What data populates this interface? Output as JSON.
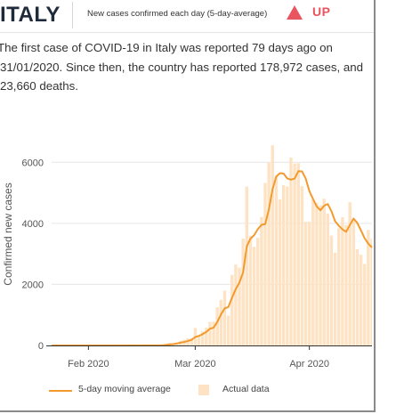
{
  "header": {
    "country": "ITALY",
    "metric_label": "New cases confirmed each day (5-day-average)",
    "trend_label": "UP",
    "trend_icon": "triangle-up-icon",
    "trend_color": "#e8555e"
  },
  "summary": "The first case of COVID-19 in Italy was reported 79 days ago on 31/01/2020. Since then, the country has reported 178,972 cases, and 23,660 deaths.",
  "legend": {
    "line_label": "5-day moving average",
    "bar_label": "Actual data"
  },
  "colors": {
    "line": "#f39a2e",
    "bars": "#fde3c3",
    "axis": "#333333",
    "grid": "#e6e6e6"
  },
  "chart_data": {
    "type": "bar",
    "title": "",
    "xlabel": "",
    "ylabel": "Confirmed new cases",
    "ylim": [
      0,
      7000
    ],
    "yticks": [
      0,
      2000,
      4000,
      6000
    ],
    "xlim": [
      "2020-01-22",
      "2020-04-18"
    ],
    "xticks": [
      {
        "date": "2020-02-01",
        "label": "Feb 2020"
      },
      {
        "date": "2020-03-01",
        "label": "Mar 2020"
      },
      {
        "date": "2020-04-01",
        "label": "Apr 2020"
      }
    ],
    "grid": "horizontal",
    "legend_position": "bottom",
    "series": [
      {
        "name": "Actual data",
        "type": "bar",
        "values": [
          [
            "2020-02-21",
            17
          ],
          [
            "2020-02-22",
            58
          ],
          [
            "2020-02-23",
            78
          ],
          [
            "2020-02-24",
            72
          ],
          [
            "2020-02-25",
            94
          ],
          [
            "2020-02-26",
            147
          ],
          [
            "2020-02-27",
            185
          ],
          [
            "2020-02-28",
            234
          ],
          [
            "2020-02-29",
            239
          ],
          [
            "2020-03-01",
            573
          ],
          [
            "2020-03-02",
            335
          ],
          [
            "2020-03-03",
            466
          ],
          [
            "2020-03-04",
            587
          ],
          [
            "2020-03-05",
            769
          ],
          [
            "2020-03-06",
            778
          ],
          [
            "2020-03-07",
            1247
          ],
          [
            "2020-03-08",
            1492
          ],
          [
            "2020-03-09",
            1797
          ],
          [
            "2020-03-10",
            977
          ],
          [
            "2020-03-11",
            2313
          ],
          [
            "2020-03-12",
            2651
          ],
          [
            "2020-03-13",
            2547
          ],
          [
            "2020-03-14",
            3497
          ],
          [
            "2020-03-15",
            5200
          ],
          [
            "2020-03-16",
            3590
          ],
          [
            "2020-03-17",
            3233
          ],
          [
            "2020-03-18",
            3526
          ],
          [
            "2020-03-19",
            4207
          ],
          [
            "2020-03-20",
            5322
          ],
          [
            "2020-03-21",
            5986
          ],
          [
            "2020-03-22",
            6557
          ],
          [
            "2020-03-23",
            5560
          ],
          [
            "2020-03-24",
            4789
          ],
          [
            "2020-03-25",
            5249
          ],
          [
            "2020-03-26",
            5210
          ],
          [
            "2020-03-27",
            6153
          ],
          [
            "2020-03-28",
            5959
          ],
          [
            "2020-03-29",
            5974
          ],
          [
            "2020-03-30",
            5217
          ],
          [
            "2020-03-31",
            4050
          ],
          [
            "2020-04-01",
            4053
          ],
          [
            "2020-04-02",
            4782
          ],
          [
            "2020-04-03",
            4668
          ],
          [
            "2020-04-04",
            4585
          ],
          [
            "2020-04-05",
            4805
          ],
          [
            "2020-04-06",
            4316
          ],
          [
            "2020-04-07",
            3599
          ],
          [
            "2020-04-08",
            3039
          ],
          [
            "2020-04-09",
            3836
          ],
          [
            "2020-04-10",
            4204
          ],
          [
            "2020-04-11",
            3951
          ],
          [
            "2020-04-12",
            4694
          ],
          [
            "2020-04-13",
            4092
          ],
          [
            "2020-04-14",
            3153
          ],
          [
            "2020-04-15",
            2972
          ],
          [
            "2020-04-16",
            2667
          ],
          [
            "2020-04-17",
            3786
          ],
          [
            "2020-04-18",
            3493
          ],
          [
            "2020-04-19",
            3491
          ],
          [
            "2020-04-20",
            3047
          ]
        ]
      },
      {
        "name": "5-day moving average",
        "type": "line",
        "values": [
          [
            "2020-01-22",
            0
          ],
          [
            "2020-01-31",
            1
          ],
          [
            "2020-02-20",
            3
          ],
          [
            "2020-02-21",
            4
          ],
          [
            "2020-02-22",
            15
          ],
          [
            "2020-02-23",
            31
          ],
          [
            "2020-02-24",
            45
          ],
          [
            "2020-02-25",
            64
          ],
          [
            "2020-02-26",
            90
          ],
          [
            "2020-02-27",
            115
          ],
          [
            "2020-02-28",
            146
          ],
          [
            "2020-02-29",
            180
          ],
          [
            "2020-03-01",
            276
          ],
          [
            "2020-03-02",
            313
          ],
          [
            "2020-03-03",
            369
          ],
          [
            "2020-03-04",
            440
          ],
          [
            "2020-03-05",
            546
          ],
          [
            "2020-03-06",
            587
          ],
          [
            "2020-03-07",
            769
          ],
          [
            "2020-03-08",
            1015
          ],
          [
            "2020-03-09",
            1217
          ],
          [
            "2020-03-10",
            1258
          ],
          [
            "2020-03-11",
            1565
          ],
          [
            "2020-03-12",
            1846
          ],
          [
            "2020-03-13",
            2057
          ],
          [
            "2020-03-14",
            2397
          ],
          [
            "2020-03-15",
            3242
          ],
          [
            "2020-03-16",
            3497
          ],
          [
            "2020-03-17",
            3613
          ],
          [
            "2020-03-18",
            3810
          ],
          [
            "2020-03-19",
            3951
          ],
          [
            "2020-03-20",
            3976
          ],
          [
            "2020-03-21",
            4455
          ],
          [
            "2020-03-22",
            5120
          ],
          [
            "2020-03-23",
            5530
          ],
          [
            "2020-03-24",
            5643
          ],
          [
            "2020-03-25",
            5628
          ],
          [
            "2020-03-26",
            5471
          ],
          [
            "2020-03-27",
            5432
          ],
          [
            "2020-03-28",
            5467
          ],
          [
            "2020-03-29",
            5709
          ],
          [
            "2020-03-30",
            5703
          ],
          [
            "2020-03-31",
            5471
          ],
          [
            "2020-04-01",
            5051
          ],
          [
            "2020-04-02",
            4798
          ],
          [
            "2020-04-03",
            4554
          ],
          [
            "2020-04-04",
            4428
          ],
          [
            "2020-04-05",
            4579
          ],
          [
            "2020-04-06",
            4631
          ],
          [
            "2020-04-07",
            4395
          ],
          [
            "2020-04-08",
            4069
          ],
          [
            "2020-04-09",
            3919
          ],
          [
            "2020-04-10",
            3799
          ],
          [
            "2020-04-11",
            3726
          ],
          [
            "2020-04-12",
            3945
          ],
          [
            "2020-04-13",
            4155
          ],
          [
            "2020-04-14",
            4019
          ],
          [
            "2020-04-15",
            3772
          ],
          [
            "2020-04-16",
            3516
          ],
          [
            "2020-04-17",
            3334
          ],
          [
            "2020-04-18",
            3210
          ],
          [
            "2020-04-19",
            3282
          ],
          [
            "2020-04-20",
            3297
          ]
        ]
      }
    ]
  }
}
